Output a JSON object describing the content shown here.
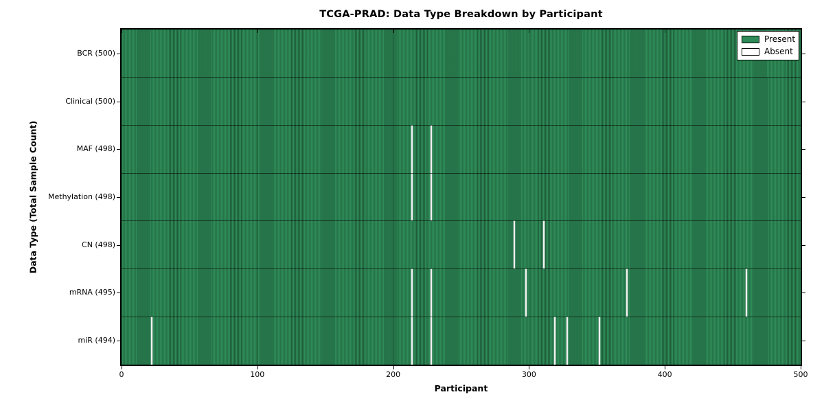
{
  "title": "TCGA-PRAD: Data Type Breakdown by Participant",
  "chart_data": {
    "type": "heatmap",
    "title": "TCGA-PRAD: Data Type Breakdown by Participant",
    "xlabel": "Participant",
    "ylabel": "Data Type (Total Sample Count)",
    "x_range": [
      0,
      500
    ],
    "x_ticks": [
      "0",
      "100",
      "200",
      "300",
      "400",
      "500"
    ],
    "n_participants": 500,
    "grid": "vertical lines at x ticks",
    "legend_position": "upper right",
    "legend": [
      {
        "label": "Present",
        "color": "#2E8B57"
      },
      {
        "label": "Absent",
        "color": "#FFFFFF"
      }
    ],
    "colors": {
      "present_fill": "#2E8B57",
      "cell_edge": "#1C5437",
      "absent_fill": "#F1F1F1",
      "border": "#000000"
    },
    "rows": [
      {
        "name": "BCR",
        "label": "BCR (500)",
        "total": 500,
        "absent_participants": []
      },
      {
        "name": "Clinical",
        "label": "Clinical (500)",
        "total": 500,
        "absent_participants": []
      },
      {
        "name": "MAF",
        "label": "MAF (498)",
        "total": 498,
        "absent_participants": [
          214,
          228
        ]
      },
      {
        "name": "Methylation",
        "label": "Methylation (498)",
        "total": 498,
        "absent_participants": [
          214,
          228
        ]
      },
      {
        "name": "CN",
        "label": "CN (498)",
        "total": 498,
        "absent_participants": [
          289,
          311
        ]
      },
      {
        "name": "mRNA",
        "label": "mRNA (495)",
        "total": 495,
        "absent_participants": [
          214,
          228,
          298,
          372,
          460
        ]
      },
      {
        "name": "miR",
        "label": "miR (494)",
        "total": 494,
        "absent_participants": [
          22,
          214,
          228,
          319,
          328,
          352
        ]
      }
    ]
  }
}
